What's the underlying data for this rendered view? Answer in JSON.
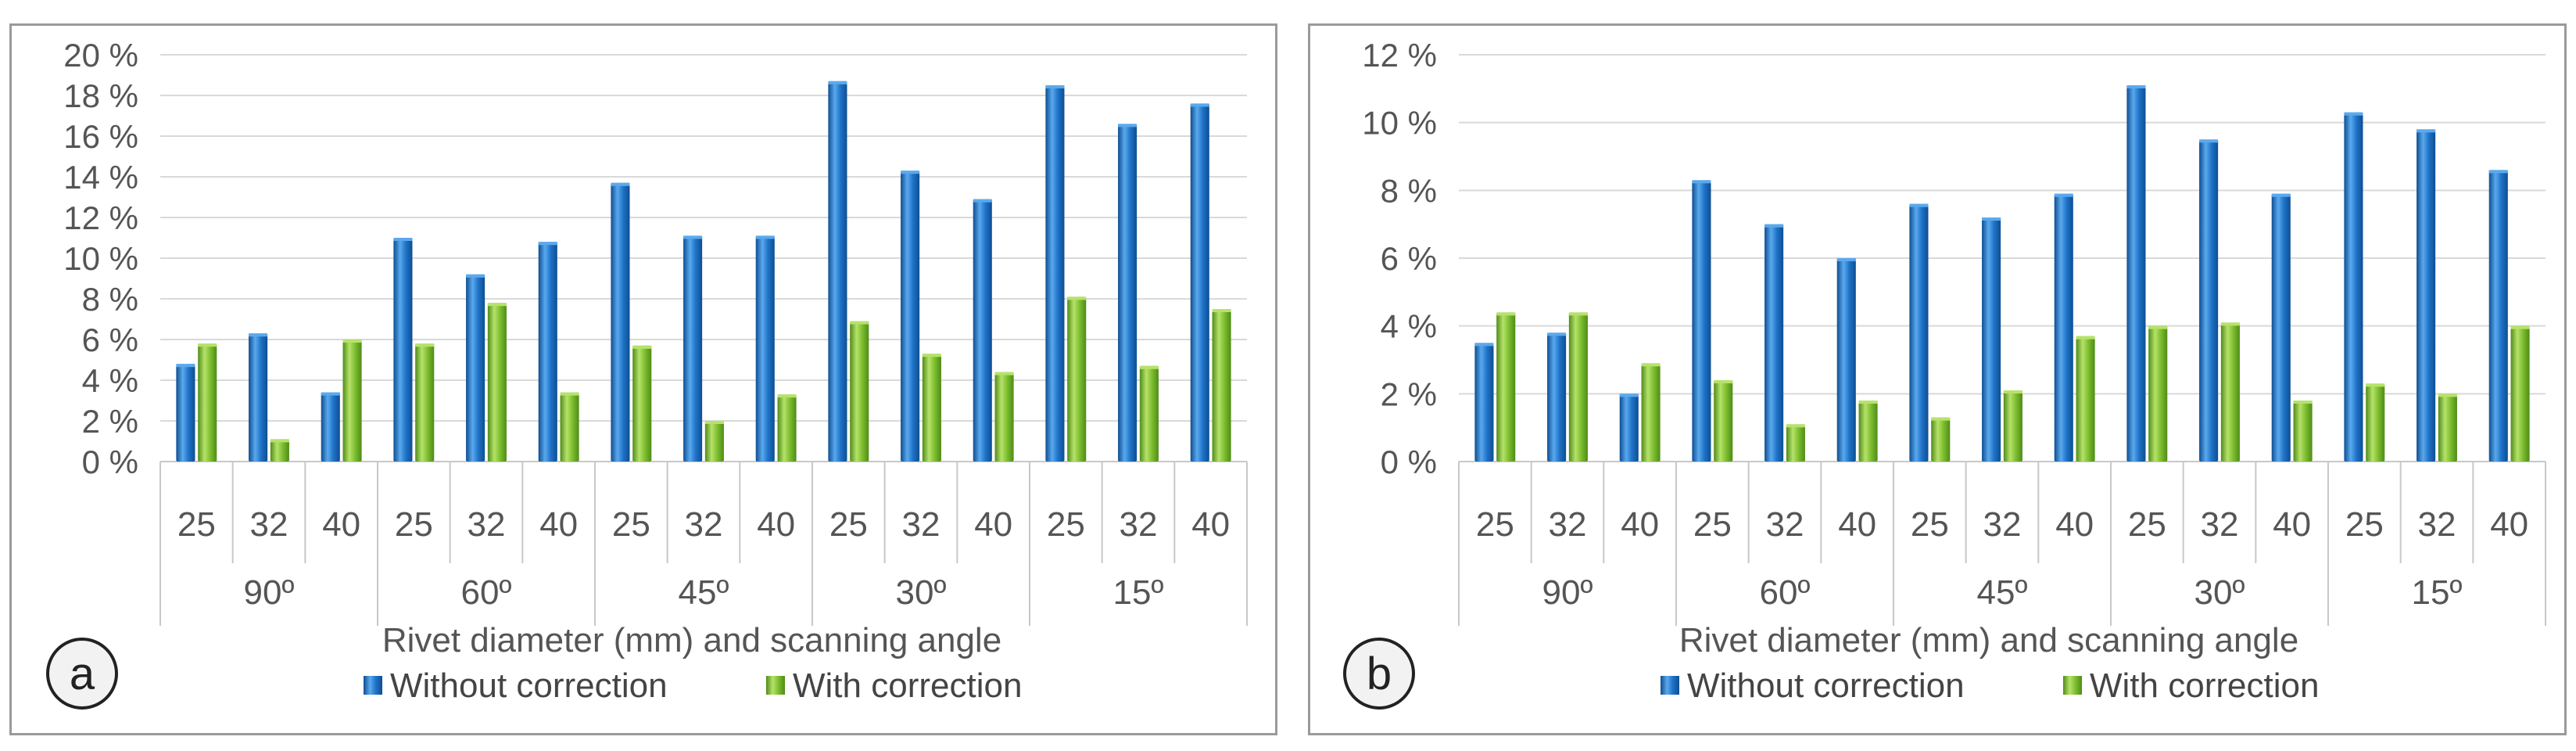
{
  "colors": {
    "without": "#1f73c8",
    "without_light": "#5aa9ee",
    "without_dark": "#0e4e92",
    "with": "#7dbe2f",
    "with_light": "#b6e26a",
    "with_dark": "#4f8c18",
    "grid": "#d9d9d9",
    "axis": "#c8c8c8",
    "text": "#555555"
  },
  "chart_data": [
    {
      "panel_label": "a",
      "type": "bar",
      "ylim": [
        0,
        20
      ],
      "yticks": [
        0,
        2,
        4,
        6,
        8,
        10,
        12,
        14,
        16,
        18,
        20
      ],
      "ytick_labels": [
        "0 %",
        "2 %",
        "4 %",
        "6 %",
        "8 %",
        "10 %",
        "12 %",
        "14 %",
        "16 %",
        "18 %",
        "20 %"
      ],
      "categories": [
        "25",
        "32",
        "40",
        "25",
        "32",
        "40",
        "25",
        "32",
        "40",
        "25",
        "32",
        "40",
        "25",
        "32",
        "40"
      ],
      "groups": [
        "90º",
        "60º",
        "45º",
        "30º",
        "15º"
      ],
      "xlabel": "Rivet diameter (mm) and scanning angle",
      "series": [
        {
          "name": "Without correction",
          "values": [
            4.8,
            6.3,
            3.4,
            11.0,
            9.2,
            10.8,
            13.7,
            11.1,
            11.1,
            18.7,
            14.3,
            12.9,
            18.5,
            16.6,
            17.6
          ]
        },
        {
          "name": "With correction",
          "values": [
            5.8,
            1.1,
            6.0,
            5.8,
            7.8,
            3.4,
            5.7,
            2.0,
            3.3,
            6.9,
            5.3,
            4.4,
            8.1,
            4.7,
            7.5
          ]
        }
      ]
    },
    {
      "panel_label": "b",
      "type": "bar",
      "ylim": [
        0,
        12
      ],
      "yticks": [
        0,
        2,
        4,
        6,
        8,
        10,
        12
      ],
      "ytick_labels": [
        "0 %",
        "2 %",
        "4 %",
        "6 %",
        "8 %",
        "10 %",
        "12 %"
      ],
      "categories": [
        "25",
        "32",
        "40",
        "25",
        "32",
        "40",
        "25",
        "32",
        "40",
        "25",
        "32",
        "40",
        "25",
        "32",
        "40"
      ],
      "groups": [
        "90º",
        "60º",
        "45º",
        "30º",
        "15º"
      ],
      "xlabel": "Rivet diameter (mm) and scanning angle",
      "series": [
        {
          "name": "Without correction",
          "values": [
            3.5,
            3.8,
            2.0,
            8.3,
            7.0,
            6.0,
            7.6,
            7.2,
            7.9,
            11.1,
            9.5,
            7.9,
            10.3,
            9.8,
            8.6
          ]
        },
        {
          "name": "With correction",
          "values": [
            4.4,
            4.4,
            2.9,
            2.4,
            1.1,
            1.8,
            1.3,
            2.1,
            3.7,
            4.0,
            4.1,
            1.8,
            2.3,
            2.0,
            4.0
          ]
        }
      ]
    }
  ]
}
